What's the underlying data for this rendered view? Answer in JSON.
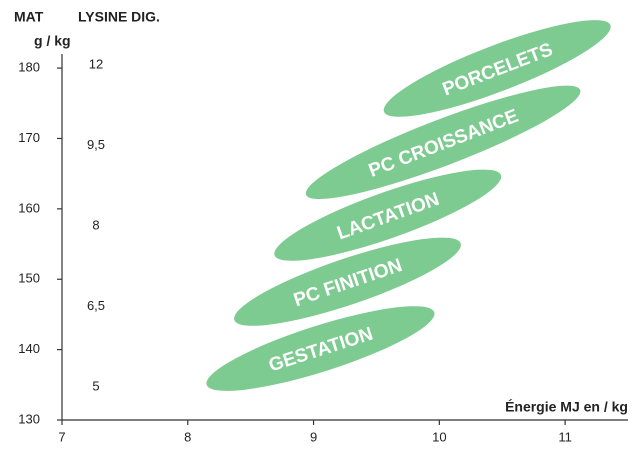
{
  "chart_data": {
    "type": "region",
    "y_axis_label": "MAT",
    "y_axis_unit": "g / kg",
    "y2_axis_label": "LYSINE DIG.",
    "x_axis_label": "Énergie MJ en / kg",
    "xlim": [
      7,
      11.5
    ],
    "xticks": [
      7,
      8,
      9,
      10,
      11
    ],
    "ylim": [
      130,
      182
    ],
    "yticks": [
      130,
      140,
      150,
      160,
      170,
      180
    ],
    "y2categories": [
      "12",
      "9,5",
      "8",
      "6,5",
      "5"
    ],
    "color": "#7dcb90",
    "series": [
      {
        "name": "GESTATION",
        "x": [
          8.15,
          9.96
        ],
        "y": [
          135,
          145.3
        ]
      },
      {
        "name": "PC FINITION",
        "x": [
          8.37,
          10.17
        ],
        "y": [
          144.2,
          155.1
        ]
      },
      {
        "name": "LACTATION",
        "x": [
          8.69,
          10.49
        ],
        "y": [
          153.4,
          164.8
        ]
      },
      {
        "name": "PC CROISSANCE",
        "x": [
          8.94,
          11.12
        ],
        "y": [
          162,
          176.9
        ]
      },
      {
        "name": "PORCELETS",
        "x": [
          9.56,
          11.36
        ],
        "y": [
          173.8,
          186.1
        ]
      }
    ]
  }
}
